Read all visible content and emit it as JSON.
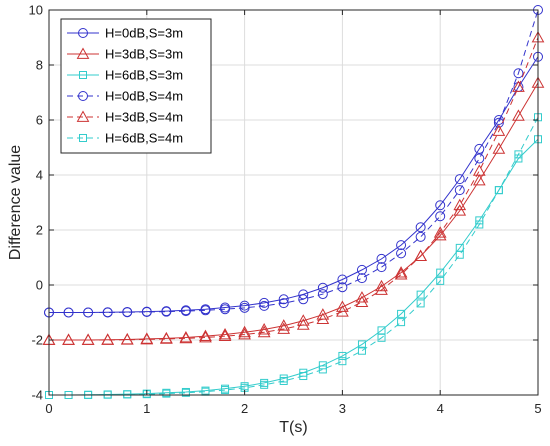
{
  "chart_data": {
    "type": "line",
    "title": "",
    "xlabel": "T(s)",
    "ylabel": "Difference value",
    "xlim": [
      0,
      5
    ],
    "ylim": [
      -4,
      10
    ],
    "xticks": [
      0,
      1,
      2,
      3,
      4,
      5
    ],
    "yticks": [
      -4,
      -2,
      0,
      2,
      4,
      6,
      8,
      10
    ],
    "grid": true,
    "legend_position": "top-left",
    "x": [
      0,
      0.2,
      0.4,
      0.6,
      0.8,
      1.0,
      1.2,
      1.4,
      1.6,
      1.8,
      2.0,
      2.2,
      2.4,
      2.6,
      2.8,
      3.0,
      3.2,
      3.4,
      3.6,
      3.8,
      4.0,
      4.2,
      4.4,
      4.6,
      4.8,
      5.0
    ],
    "series": [
      {
        "name": "H=0dB,S=3m",
        "color": "#3333cc",
        "linestyle": "solid",
        "marker": "circle",
        "values": [
          -1.0,
          -1.0,
          -1.0,
          -0.99,
          -0.98,
          -0.97,
          -0.95,
          -0.92,
          -0.88,
          -0.82,
          -0.75,
          -0.65,
          -0.52,
          -0.34,
          -0.1,
          0.2,
          0.55,
          0.95,
          1.45,
          2.1,
          2.9,
          3.85,
          4.95,
          6.0,
          7.2,
          8.3
        ]
      },
      {
        "name": "H=3dB,S=3m",
        "color": "#cc3333",
        "linestyle": "solid",
        "marker": "triangle",
        "values": [
          -2.0,
          -2.0,
          -2.0,
          -1.99,
          -1.98,
          -1.96,
          -1.94,
          -1.91,
          -1.86,
          -1.8,
          -1.72,
          -1.62,
          -1.48,
          -1.3,
          -1.08,
          -0.8,
          -0.46,
          -0.05,
          0.45,
          1.05,
          1.8,
          2.7,
          3.8,
          4.95,
          6.15,
          7.35
        ]
      },
      {
        "name": "H=6dB,S=3m",
        "color": "#33cccc",
        "linestyle": "solid",
        "marker": "square",
        "values": [
          -4.0,
          -4.0,
          -3.99,
          -3.98,
          -3.97,
          -3.95,
          -3.92,
          -3.89,
          -3.84,
          -3.77,
          -3.68,
          -3.56,
          -3.4,
          -3.19,
          -2.92,
          -2.58,
          -2.16,
          -1.65,
          -1.05,
          -0.35,
          0.45,
          1.35,
          2.35,
          3.45,
          4.6,
          5.3
        ]
      },
      {
        "name": "H=0dB,S=4m",
        "color": "#3333cc",
        "linestyle": "dashed",
        "marker": "circle",
        "values": [
          -1.0,
          -1.0,
          -1.0,
          -1.0,
          -0.99,
          -0.98,
          -0.97,
          -0.95,
          -0.92,
          -0.88,
          -0.83,
          -0.76,
          -0.66,
          -0.52,
          -0.33,
          -0.08,
          0.25,
          0.65,
          1.15,
          1.75,
          2.5,
          3.45,
          4.6,
          5.9,
          7.7,
          10.0
        ]
      },
      {
        "name": "H=3dB,S=4m",
        "color": "#cc3333",
        "linestyle": "dashed",
        "marker": "triangle",
        "values": [
          -2.0,
          -2.0,
          -2.0,
          -2.0,
          -1.99,
          -1.98,
          -1.96,
          -1.94,
          -1.91,
          -1.86,
          -1.8,
          -1.72,
          -1.6,
          -1.45,
          -1.24,
          -0.97,
          -0.62,
          -0.18,
          0.38,
          1.05,
          1.9,
          2.9,
          4.15,
          5.6,
          7.2,
          9.0
        ]
      },
      {
        "name": "H=6dB,S=4m",
        "color": "#33cccc",
        "linestyle": "dashed",
        "marker": "square",
        "values": [
          -4.0,
          -4.0,
          -4.0,
          -3.99,
          -3.98,
          -3.97,
          -3.95,
          -3.92,
          -3.88,
          -3.82,
          -3.74,
          -3.63,
          -3.49,
          -3.31,
          -3.07,
          -2.77,
          -2.39,
          -1.92,
          -1.35,
          -0.67,
          0.15,
          1.1,
          2.2,
          3.45,
          4.75,
          6.1
        ]
      }
    ]
  }
}
